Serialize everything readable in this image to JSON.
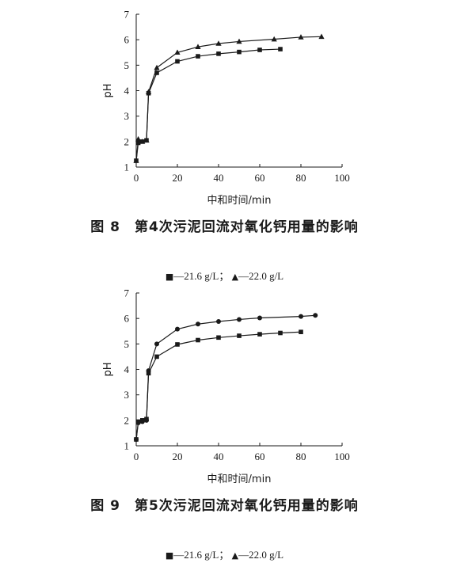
{
  "figures": [
    {
      "caption": "图 8　第4次污泥回流对氧化钙用量的影响",
      "legend": [
        {
          "marker": "■",
          "text": "—21.6 g/L；"
        },
        {
          "marker": "▲",
          "text": "—22.0 g/L"
        }
      ],
      "chart_data": {
        "type": "line",
        "xlabel": "中和时间/min",
        "ylabel": "pH",
        "xlim": [
          0,
          100
        ],
        "ylim": [
          1,
          7
        ],
        "xticks": [
          0,
          20,
          40,
          60,
          80,
          100
        ],
        "yticks": [
          1,
          2,
          3,
          4,
          5,
          6,
          7
        ],
        "series": [
          {
            "name": "21.6 g/L",
            "marker": "square",
            "x": [
              0,
              1,
              3,
              5,
              6,
              10,
              20,
              30,
              40,
              50,
              60,
              70
            ],
            "y": [
              1.25,
              1.95,
              2.0,
              2.05,
              3.9,
              4.7,
              5.15,
              5.35,
              5.45,
              5.52,
              5.6,
              5.63
            ]
          },
          {
            "name": "22.0 g/L",
            "marker": "triangle",
            "x": [
              0,
              1,
              3,
              5,
              6,
              10,
              20,
              30,
              40,
              50,
              67,
              80,
              90
            ],
            "y": [
              1.25,
              2.1,
              2.0,
              2.05,
              3.95,
              4.9,
              5.5,
              5.72,
              5.85,
              5.93,
              6.02,
              6.1,
              6.12
            ]
          }
        ]
      }
    },
    {
      "caption": "图 9　第5次污泥回流对氧化钙用量的影响",
      "legend": [
        {
          "marker": "■",
          "text": "—21.6 g/L；"
        },
        {
          "marker": "▲",
          "text": "—22.0 g/L"
        }
      ],
      "chart_data": {
        "type": "line",
        "xlabel": "中和时间/min",
        "ylabel": "pH",
        "xlim": [
          0,
          100
        ],
        "ylim": [
          1,
          7
        ],
        "xticks": [
          0,
          20,
          40,
          60,
          80,
          100
        ],
        "yticks": [
          1,
          2,
          3,
          4,
          5,
          6,
          7
        ],
        "series": [
          {
            "name": "21.6 g/L",
            "marker": "square",
            "x": [
              0,
              1,
              3,
              5,
              6,
              10,
              20,
              30,
              40,
              50,
              60,
              70,
              80
            ],
            "y": [
              1.25,
              1.95,
              2.0,
              2.05,
              3.85,
              4.5,
              4.98,
              5.15,
              5.25,
              5.32,
              5.38,
              5.43,
              5.47
            ]
          },
          {
            "name": "22.0 g/L",
            "marker": "circle",
            "x": [
              0,
              1,
              3,
              5,
              6,
              10,
              20,
              30,
              40,
              50,
              60,
              80,
              87
            ],
            "y": [
              1.25,
              1.9,
              1.95,
              2.0,
              3.95,
              5.0,
              5.58,
              5.78,
              5.88,
              5.96,
              6.02,
              6.08,
              6.12
            ]
          }
        ]
      }
    }
  ]
}
